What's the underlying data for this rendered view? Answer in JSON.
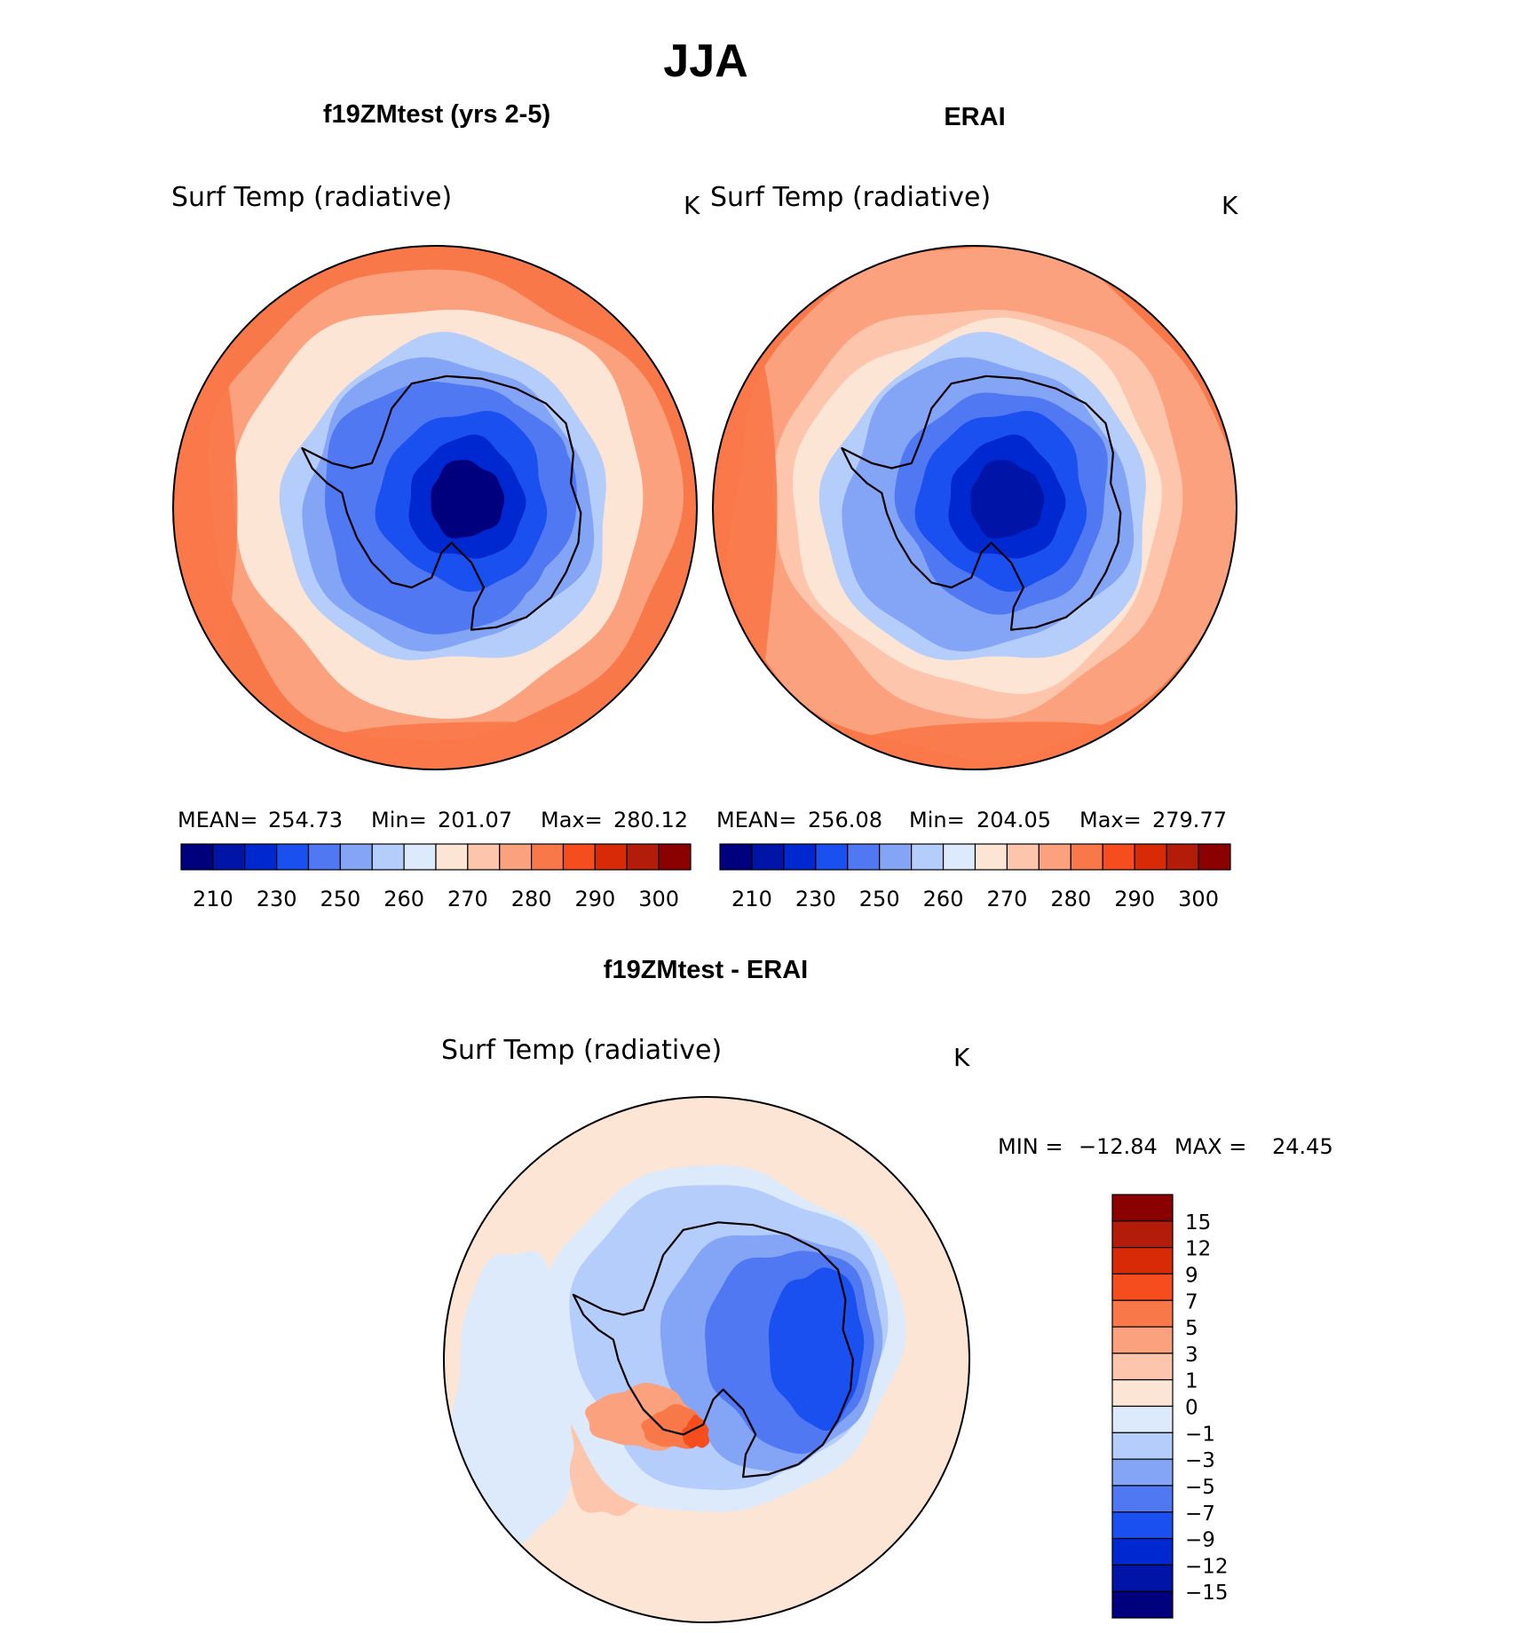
{
  "figure": {
    "title": "JJA"
  },
  "palette": {
    "abs": [
      "#00007f",
      "#0014a8",
      "#0028d0",
      "#1a4ff0",
      "#4f78f2",
      "#84a4f6",
      "#b4cdfa",
      "#dceafc",
      "#fde5d6",
      "#fcc5ac",
      "#fba17e",
      "#f97849",
      "#f64d1f",
      "#d92a08",
      "#b41c0a",
      "#8b0000"
    ],
    "diff": [
      "#00007f",
      "#0014a8",
      "#0028d0",
      "#1a4ff0",
      "#4f78f2",
      "#84a4f6",
      "#b4cdfa",
      "#dceafc",
      "#fde5d6",
      "#fcc5ac",
      "#fba17e",
      "#f97849",
      "#f64d1f",
      "#d92a08",
      "#b41c0a",
      "#8b0000"
    ],
    "coastline": "#000000"
  },
  "chart_data": [
    {
      "type": "heatmap",
      "panel_title": "f19ZMtest (yrs 2-5)",
      "field_label": "Surf Temp (radiative)",
      "units": "K",
      "projection": "south-polar-stereographic",
      "stats": {
        "mean_label": "MEAN=",
        "mean": "254.73",
        "min_label": "Min=",
        "min": "201.07",
        "max_label": "Max=",
        "max": "280.12"
      },
      "colorbar": {
        "orientation": "horizontal",
        "tick_labels": [
          "210",
          "230",
          "250",
          "260",
          "270",
          "280",
          "290",
          "300"
        ]
      },
      "field_sample": {
        "pole": 201,
        "coast": 240,
        "ring_60s": 262,
        "ring_50s": 272,
        "edge": 280
      }
    },
    {
      "type": "heatmap",
      "panel_title": "ERAI",
      "field_label": "Surf Temp (radiative)",
      "units": "K",
      "projection": "south-polar-stereographic",
      "stats": {
        "mean_label": "MEAN=",
        "mean": "256.08",
        "min_label": "Min=",
        "min": "204.05",
        "max_label": "Max=",
        "max": "279.77"
      },
      "colorbar": {
        "orientation": "horizontal",
        "tick_labels": [
          "210",
          "230",
          "250",
          "260",
          "270",
          "280",
          "290",
          "300"
        ]
      },
      "field_sample": {
        "pole": 204,
        "coast": 242,
        "ring_60s": 263,
        "ring_50s": 272,
        "edge": 279
      }
    },
    {
      "type": "heatmap",
      "panel_title": "f19ZMtest - ERAI",
      "field_label": "Surf Temp (radiative)",
      "units": "K",
      "projection": "south-polar-stereographic",
      "stats": {
        "min_label": "MIN =",
        "min": "−12.84",
        "max_label": "MAX =",
        "max": "24.45"
      },
      "colorbar": {
        "orientation": "vertical",
        "tick_labels": [
          "15",
          "12",
          "9",
          "7",
          "5",
          "3",
          "1",
          "0",
          "−1",
          "−3",
          "−5",
          "−7",
          "−9",
          "−12",
          "−15"
        ]
      },
      "field_sample": {
        "east_antarctica": -8,
        "west_antarctica": 5,
        "ocean": 0.5,
        "sea_ice_ring": -2
      }
    }
  ]
}
